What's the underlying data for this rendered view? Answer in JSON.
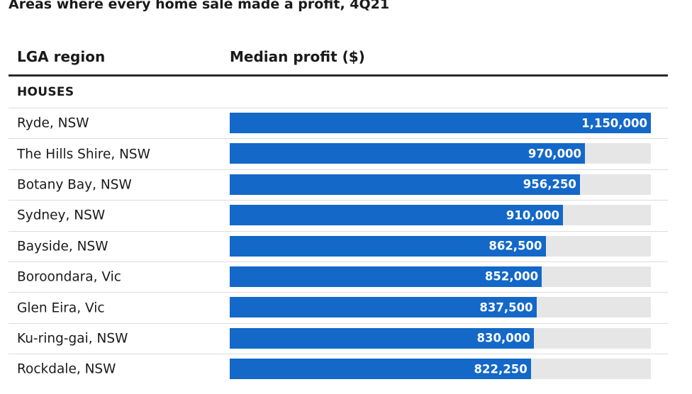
{
  "title": "Areas where every home sale made a profit, 4Q21",
  "columns": {
    "region": "LGA region",
    "profit": "Median profit ($)"
  },
  "section": "HOUSES",
  "colors": {
    "bar": "#1368c8",
    "track": "#e6e6e6"
  },
  "chart_data": {
    "type": "bar",
    "orientation": "horizontal",
    "title": "Areas where every home sale made a profit, 4Q21",
    "xlabel": "Median profit ($)",
    "ylabel": "LGA region",
    "xlim": [
      0,
      1150000
    ],
    "categories": [
      "Ryde, NSW",
      "The Hills Shire, NSW",
      "Botany Bay, NSW",
      "Sydney, NSW",
      "Bayside, NSW",
      "Boroondara, Vic",
      "Glen Eira, Vic",
      "Ku-ring-gai, NSW",
      "Rockdale, NSW"
    ],
    "values": [
      1150000,
      970000,
      956250,
      910000,
      862500,
      852000,
      837500,
      830000,
      822250
    ],
    "labels": [
      "1,150,000",
      "970,000",
      "956,250",
      "910,000",
      "862,500",
      "852,000",
      "837,500",
      "830,000",
      "822,250"
    ]
  }
}
